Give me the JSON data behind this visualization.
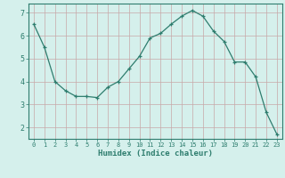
{
  "x": [
    0,
    1,
    2,
    3,
    4,
    5,
    6,
    7,
    8,
    9,
    10,
    11,
    12,
    13,
    14,
    15,
    16,
    17,
    18,
    19,
    20,
    21,
    22,
    23
  ],
  "y": [
    6.5,
    5.5,
    4.0,
    3.6,
    3.35,
    3.35,
    3.3,
    3.75,
    4.0,
    4.55,
    5.1,
    5.9,
    6.1,
    6.5,
    6.85,
    7.1,
    6.85,
    6.2,
    5.75,
    4.85,
    4.85,
    4.2,
    2.65,
    1.7
  ],
  "line_color": "#2e7d6e",
  "marker_color": "#2e7d6e",
  "bg_color": "#d5f0ec",
  "grid_major_color": "#c8a8a8",
  "grid_minor_color": "#dfc8c8",
  "axis_color": "#2e7d6e",
  "tick_color": "#2e7d6e",
  "xlabel": "Humidex (Indice chaleur)",
  "xlim": [
    -0.5,
    23.5
  ],
  "ylim": [
    1.5,
    7.4
  ],
  "yticks": [
    2,
    3,
    4,
    5,
    6,
    7
  ],
  "xticks": [
    0,
    1,
    2,
    3,
    4,
    5,
    6,
    7,
    8,
    9,
    10,
    11,
    12,
    13,
    14,
    15,
    16,
    17,
    18,
    19,
    20,
    21,
    22,
    23
  ],
  "xlabel_fontsize": 6.5,
  "tick_fontsize_x": 5.0,
  "tick_fontsize_y": 6.0
}
